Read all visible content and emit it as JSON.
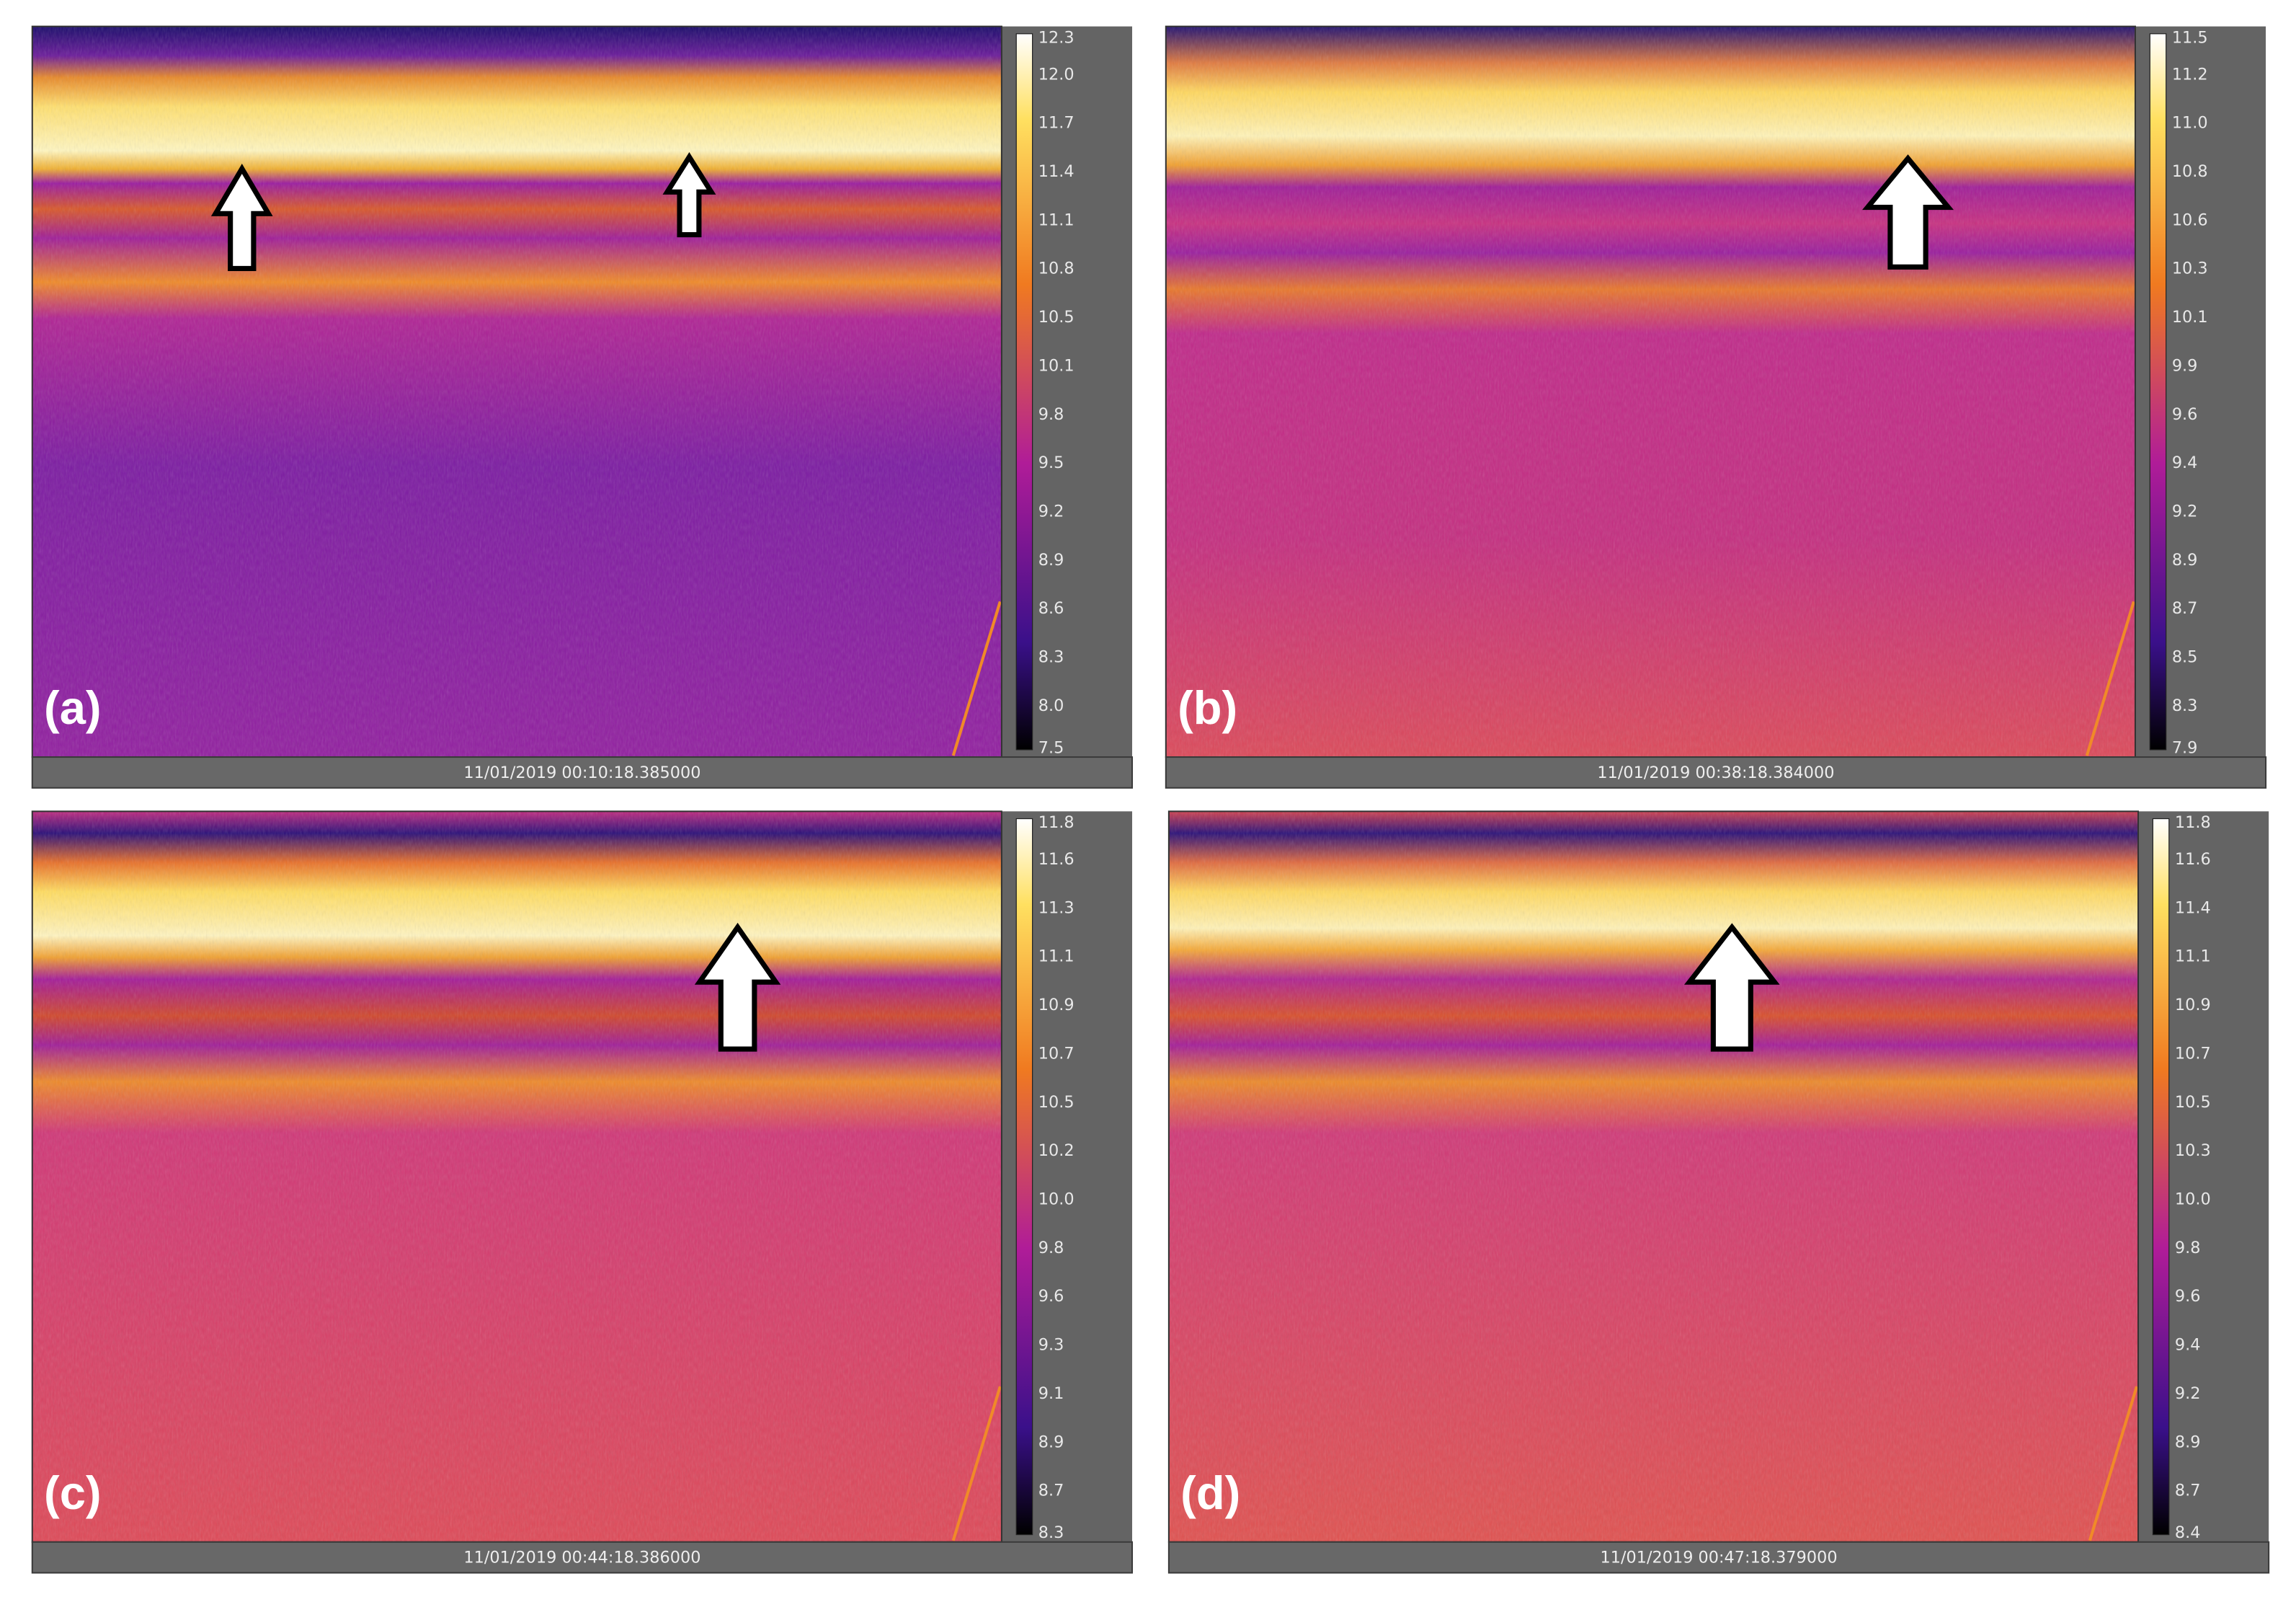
{
  "panels": [
    {
      "label": "(a)",
      "timestamp": "11/01/2019 00:10:18.385000",
      "scale_ticks": [
        "12.3",
        "12.0",
        "11.7",
        "11.4",
        "11.1",
        "10.8",
        "10.5",
        "10.1",
        "9.8",
        "9.5",
        "9.2",
        "8.9",
        "8.6",
        "8.3",
        "8.0",
        "7.5"
      ]
    },
    {
      "label": "(b)",
      "timestamp": "11/01/2019 00:38:18.384000",
      "scale_ticks": [
        "11.5",
        "11.2",
        "11.0",
        "10.8",
        "10.6",
        "10.3",
        "10.1",
        "9.9",
        "9.6",
        "9.4",
        "9.2",
        "8.9",
        "8.7",
        "8.5",
        "8.3",
        "7.9"
      ]
    },
    {
      "label": "(c)",
      "timestamp": "11/01/2019 00:44:18.386000",
      "scale_ticks": [
        "11.8",
        "11.6",
        "11.3",
        "11.1",
        "10.9",
        "10.7",
        "10.5",
        "10.2",
        "10.0",
        "9.8",
        "9.6",
        "9.3",
        "9.1",
        "8.9",
        "8.7",
        "8.3"
      ]
    },
    {
      "label": "(d)",
      "timestamp": "11/01/2019 00:47:18.379000",
      "scale_ticks": [
        "11.8",
        "11.6",
        "11.4",
        "11.1",
        "10.9",
        "10.7",
        "10.5",
        "10.3",
        "10.0",
        "9.8",
        "9.6",
        "9.4",
        "9.2",
        "8.9",
        "8.7",
        "8.4"
      ]
    }
  ]
}
